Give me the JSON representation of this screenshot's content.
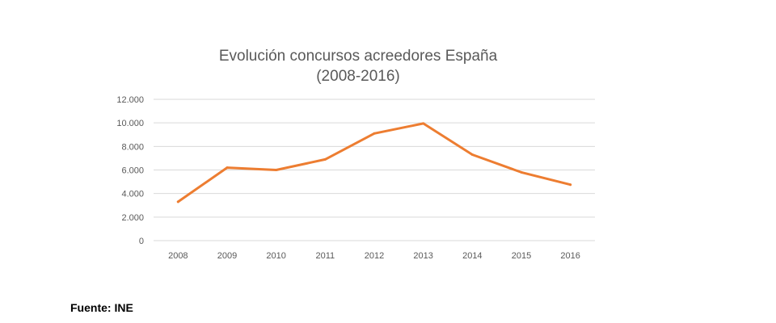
{
  "chart_data": {
    "type": "line",
    "title_lines": [
      "Evolución concursos acreedores España",
      "(2008-2016)"
    ],
    "xlabel": "",
    "ylabel": "",
    "x": [
      "2008",
      "2009",
      "2010",
      "2011",
      "2012",
      "2013",
      "2014",
      "2015",
      "2016"
    ],
    "series": [
      {
        "values": [
          3300,
          6200,
          6000,
          6900,
          9100,
          9950,
          7300,
          5800,
          4750
        ],
        "color": "#ED7D31"
      }
    ],
    "ylim": [
      0,
      12000
    ],
    "yticks": [
      0,
      2000,
      4000,
      6000,
      8000,
      10000,
      12000
    ],
    "ytick_labels": [
      "0",
      "2.000",
      "4.000",
      "6.000",
      "8.000",
      "10.000",
      "12.000"
    ],
    "grid": true,
    "gridline_color": "#D9D9D9",
    "legend": "none"
  },
  "source": "Fuente: INE"
}
